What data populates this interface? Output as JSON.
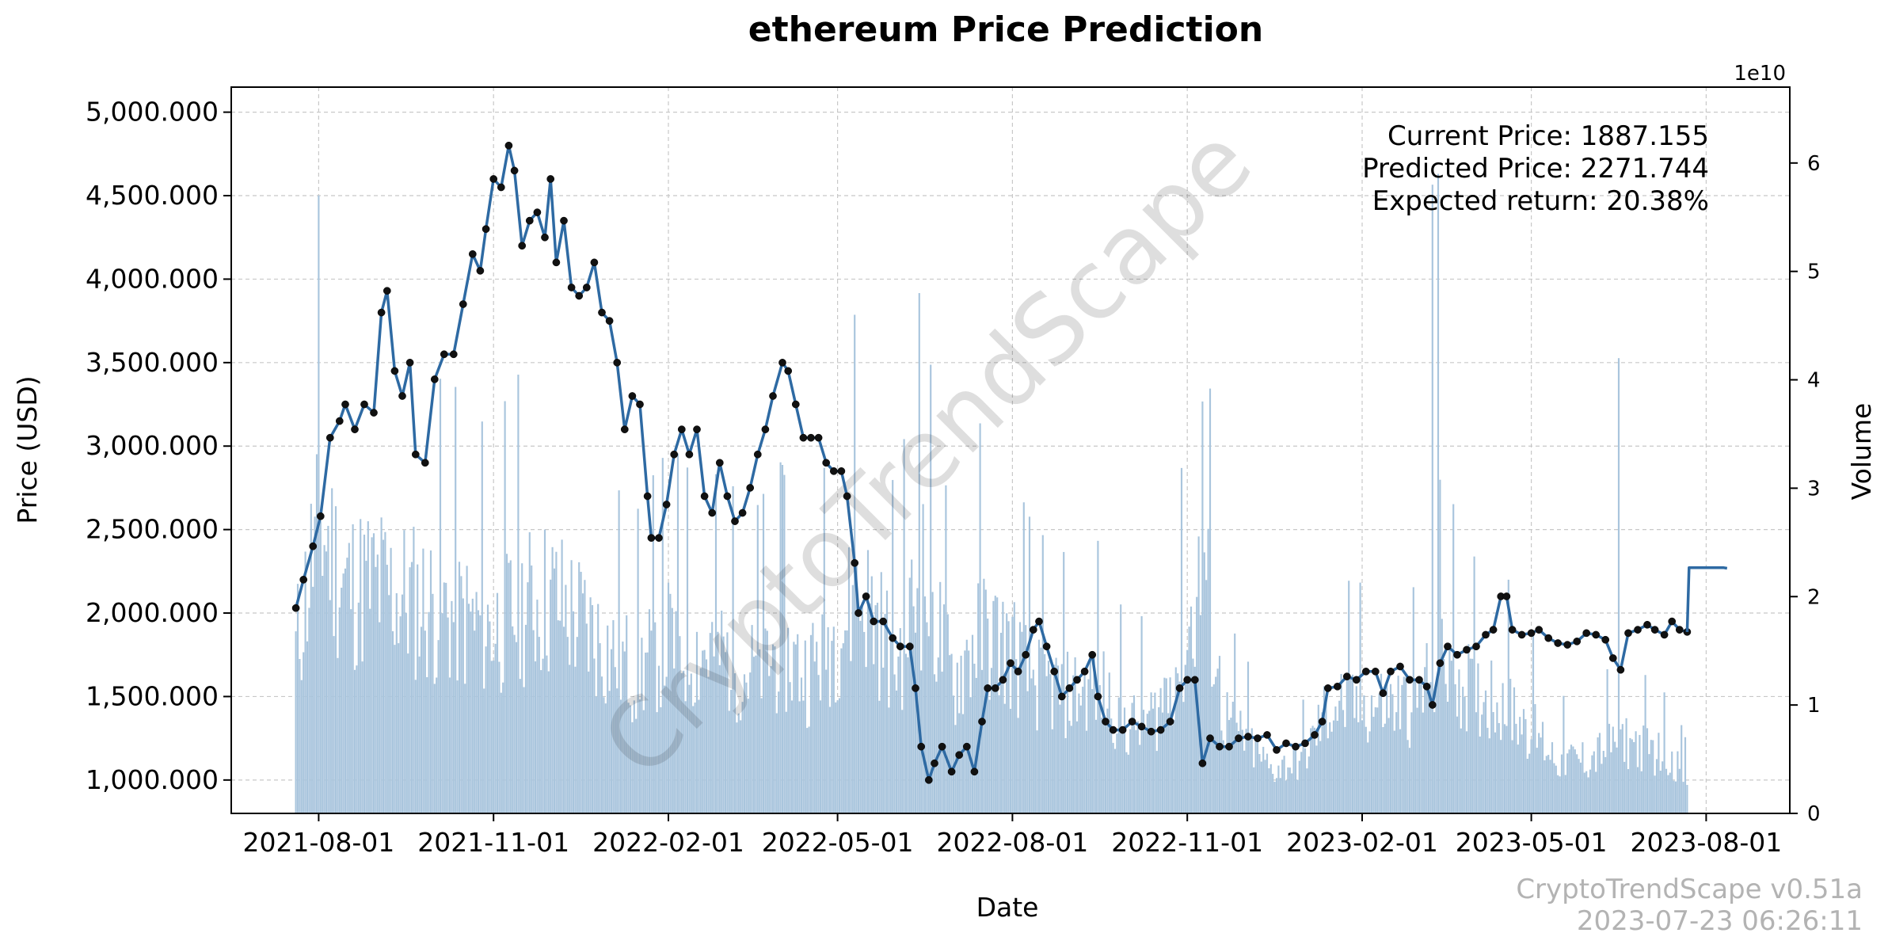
{
  "chart_data": {
    "type": "line",
    "title": "ethereum Price Prediction",
    "xlabel": "Date",
    "ylabel": "Price (USD)",
    "y2label": "Volume",
    "y2_scale_note": "1e10",
    "ylim": [
      800,
      5150
    ],
    "y2lim": [
      0,
      6.7
    ],
    "grid": true,
    "x_ticks": [
      "2021-08-01",
      "2021-11-01",
      "2022-02-01",
      "2022-05-01",
      "2022-08-01",
      "2022-11-01",
      "2023-02-01",
      "2023-05-01",
      "2023-08-01"
    ],
    "y_ticks": [
      "1,000.000",
      "1,500.000",
      "2,000.000",
      "2,500.000",
      "3,000.000",
      "3,500.000",
      "4,000.000",
      "4,500.000",
      "5,000.000"
    ],
    "y_tick_values": [
      1000,
      1500,
      2000,
      2500,
      3000,
      3500,
      4000,
      4500,
      5000
    ],
    "y2_ticks": [
      "0",
      "1",
      "2",
      "3",
      "4",
      "5",
      "6"
    ],
    "y2_tick_values": [
      0,
      1,
      2,
      3,
      4,
      5,
      6
    ],
    "series": [
      {
        "name": "Price",
        "style": "line-with-markers",
        "color": "#2e6aa3",
        "points": [
          [
            "2021-07-20",
            2030
          ],
          [
            "2021-07-24",
            2200
          ],
          [
            "2021-07-29",
            2400
          ],
          [
            "2021-08-02",
            2580
          ],
          [
            "2021-08-07",
            3050
          ],
          [
            "2021-08-12",
            3150
          ],
          [
            "2021-08-15",
            3250
          ],
          [
            "2021-08-20",
            3100
          ],
          [
            "2021-08-25",
            3250
          ],
          [
            "2021-08-30",
            3200
          ],
          [
            "2021-09-03",
            3800
          ],
          [
            "2021-09-06",
            3930
          ],
          [
            "2021-09-10",
            3450
          ],
          [
            "2021-09-14",
            3300
          ],
          [
            "2021-09-18",
            3500
          ],
          [
            "2021-09-21",
            2950
          ],
          [
            "2021-09-26",
            2900
          ],
          [
            "2021-10-01",
            3400
          ],
          [
            "2021-10-06",
            3550
          ],
          [
            "2021-10-11",
            3550
          ],
          [
            "2021-10-16",
            3850
          ],
          [
            "2021-10-21",
            4150
          ],
          [
            "2021-10-25",
            4050
          ],
          [
            "2021-10-28",
            4300
          ],
          [
            "2021-11-01",
            4600
          ],
          [
            "2021-11-05",
            4550
          ],
          [
            "2021-11-09",
            4800
          ],
          [
            "2021-11-12",
            4650
          ],
          [
            "2021-11-16",
            4200
          ],
          [
            "2021-11-20",
            4350
          ],
          [
            "2021-11-24",
            4400
          ],
          [
            "2021-11-28",
            4250
          ],
          [
            "2021-12-01",
            4600
          ],
          [
            "2021-12-04",
            4100
          ],
          [
            "2021-12-08",
            4350
          ],
          [
            "2021-12-12",
            3950
          ],
          [
            "2021-12-16",
            3900
          ],
          [
            "2021-12-20",
            3950
          ],
          [
            "2021-12-24",
            4100
          ],
          [
            "2021-12-28",
            3800
          ],
          [
            "2022-01-01",
            3750
          ],
          [
            "2022-01-05",
            3500
          ],
          [
            "2022-01-09",
            3100
          ],
          [
            "2022-01-13",
            3300
          ],
          [
            "2022-01-17",
            3250
          ],
          [
            "2022-01-21",
            2700
          ],
          [
            "2022-01-23",
            2450
          ],
          [
            "2022-01-27",
            2450
          ],
          [
            "2022-01-31",
            2650
          ],
          [
            "2022-02-04",
            2950
          ],
          [
            "2022-02-08",
            3100
          ],
          [
            "2022-02-12",
            2950
          ],
          [
            "2022-02-16",
            3100
          ],
          [
            "2022-02-20",
            2700
          ],
          [
            "2022-02-24",
            2600
          ],
          [
            "2022-02-28",
            2900
          ],
          [
            "2022-03-04",
            2700
          ],
          [
            "2022-03-08",
            2550
          ],
          [
            "2022-03-12",
            2600
          ],
          [
            "2022-03-16",
            2750
          ],
          [
            "2022-03-20",
            2950
          ],
          [
            "2022-03-24",
            3100
          ],
          [
            "2022-03-28",
            3300
          ],
          [
            "2022-04-02",
            3500
          ],
          [
            "2022-04-05",
            3450
          ],
          [
            "2022-04-09",
            3250
          ],
          [
            "2022-04-13",
            3050
          ],
          [
            "2022-04-17",
            3050
          ],
          [
            "2022-04-21",
            3050
          ],
          [
            "2022-04-25",
            2900
          ],
          [
            "2022-04-29",
            2850
          ],
          [
            "2022-05-03",
            2850
          ],
          [
            "2022-05-06",
            2700
          ],
          [
            "2022-05-10",
            2300
          ],
          [
            "2022-05-12",
            2000
          ],
          [
            "2022-05-16",
            2100
          ],
          [
            "2022-05-20",
            1950
          ],
          [
            "2022-05-25",
            1950
          ],
          [
            "2022-05-30",
            1850
          ],
          [
            "2022-06-03",
            1800
          ],
          [
            "2022-06-08",
            1800
          ],
          [
            "2022-06-11",
            1550
          ],
          [
            "2022-06-14",
            1200
          ],
          [
            "2022-06-18",
            1000
          ],
          [
            "2022-06-21",
            1100
          ],
          [
            "2022-06-25",
            1200
          ],
          [
            "2022-06-30",
            1050
          ],
          [
            "2022-07-04",
            1150
          ],
          [
            "2022-07-08",
            1200
          ],
          [
            "2022-07-12",
            1050
          ],
          [
            "2022-07-16",
            1350
          ],
          [
            "2022-07-19",
            1550
          ],
          [
            "2022-07-23",
            1550
          ],
          [
            "2022-07-27",
            1600
          ],
          [
            "2022-07-31",
            1700
          ],
          [
            "2022-08-04",
            1650
          ],
          [
            "2022-08-08",
            1750
          ],
          [
            "2022-08-12",
            1900
          ],
          [
            "2022-08-15",
            1950
          ],
          [
            "2022-08-19",
            1800
          ],
          [
            "2022-08-23",
            1650
          ],
          [
            "2022-08-27",
            1500
          ],
          [
            "2022-08-31",
            1550
          ],
          [
            "2022-09-04",
            1600
          ],
          [
            "2022-09-08",
            1650
          ],
          [
            "2022-09-12",
            1750
          ],
          [
            "2022-09-15",
            1500
          ],
          [
            "2022-09-19",
            1350
          ],
          [
            "2022-09-23",
            1300
          ],
          [
            "2022-09-28",
            1300
          ],
          [
            "2022-10-03",
            1350
          ],
          [
            "2022-10-08",
            1320
          ],
          [
            "2022-10-13",
            1290
          ],
          [
            "2022-10-18",
            1300
          ],
          [
            "2022-10-23",
            1350
          ],
          [
            "2022-10-28",
            1550
          ],
          [
            "2022-11-01",
            1600
          ],
          [
            "2022-11-05",
            1600
          ],
          [
            "2022-11-09",
            1100
          ],
          [
            "2022-11-13",
            1250
          ],
          [
            "2022-11-18",
            1200
          ],
          [
            "2022-11-23",
            1200
          ],
          [
            "2022-11-28",
            1250
          ],
          [
            "2022-12-03",
            1260
          ],
          [
            "2022-12-08",
            1250
          ],
          [
            "2022-12-13",
            1270
          ],
          [
            "2022-12-18",
            1180
          ],
          [
            "2022-12-23",
            1220
          ],
          [
            "2022-12-28",
            1200
          ],
          [
            "2023-01-02",
            1220
          ],
          [
            "2023-01-07",
            1270
          ],
          [
            "2023-01-11",
            1350
          ],
          [
            "2023-01-14",
            1550
          ],
          [
            "2023-01-19",
            1560
          ],
          [
            "2023-01-24",
            1620
          ],
          [
            "2023-01-29",
            1600
          ],
          [
            "2023-02-03",
            1650
          ],
          [
            "2023-02-08",
            1650
          ],
          [
            "2023-02-12",
            1520
          ],
          [
            "2023-02-16",
            1650
          ],
          [
            "2023-02-21",
            1680
          ],
          [
            "2023-02-26",
            1600
          ],
          [
            "2023-03-03",
            1600
          ],
          [
            "2023-03-07",
            1560
          ],
          [
            "2023-03-10",
            1450
          ],
          [
            "2023-03-14",
            1700
          ],
          [
            "2023-03-18",
            1800
          ],
          [
            "2023-03-23",
            1750
          ],
          [
            "2023-03-28",
            1780
          ],
          [
            "2023-04-02",
            1800
          ],
          [
            "2023-04-07",
            1870
          ],
          [
            "2023-04-11",
            1900
          ],
          [
            "2023-04-15",
            2100
          ],
          [
            "2023-04-18",
            2100
          ],
          [
            "2023-04-21",
            1900
          ],
          [
            "2023-04-26",
            1870
          ],
          [
            "2023-05-01",
            1880
          ],
          [
            "2023-05-05",
            1900
          ],
          [
            "2023-05-10",
            1850
          ],
          [
            "2023-05-15",
            1820
          ],
          [
            "2023-05-20",
            1810
          ],
          [
            "2023-05-25",
            1830
          ],
          [
            "2023-05-30",
            1880
          ],
          [
            "2023-06-04",
            1870
          ],
          [
            "2023-06-09",
            1840
          ],
          [
            "2023-06-13",
            1730
          ],
          [
            "2023-06-17",
            1660
          ],
          [
            "2023-06-21",
            1880
          ],
          [
            "2023-06-26",
            1900
          ],
          [
            "2023-07-01",
            1930
          ],
          [
            "2023-07-05",
            1900
          ],
          [
            "2023-07-10",
            1870
          ],
          [
            "2023-07-14",
            1950
          ],
          [
            "2023-07-18",
            1900
          ],
          [
            "2023-07-22",
            1887
          ]
        ]
      },
      {
        "name": "Prediction",
        "style": "line",
        "color": "#2e6aa3",
        "points": [
          [
            "2023-07-22",
            1887
          ],
          [
            "2023-07-23",
            2272
          ],
          [
            "2023-08-10",
            2272
          ],
          [
            "2023-08-12",
            2268
          ]
        ]
      },
      {
        "name": "Volume",
        "type": "bar",
        "axis": "y2",
        "color": "#a9c5dd",
        "unit": "1e10",
        "points": [
          [
            "2021-07-20",
            1.5
          ],
          [
            "2021-08-01",
            2.7
          ],
          [
            "2021-08-15",
            2.1
          ],
          [
            "2021-09-01",
            2.1
          ],
          [
            "2021-09-15",
            2.0
          ],
          [
            "2021-10-01",
            1.9
          ],
          [
            "2021-10-15",
            1.8
          ],
          [
            "2021-11-01",
            1.7
          ],
          [
            "2021-11-15",
            1.9
          ],
          [
            "2021-12-01",
            2.0
          ],
          [
            "2021-12-15",
            1.8
          ],
          [
            "2022-01-01",
            1.5
          ],
          [
            "2022-01-15",
            1.3
          ],
          [
            "2022-02-01",
            1.6
          ],
          [
            "2022-02-15",
            1.5
          ],
          [
            "2022-03-01",
            1.5
          ],
          [
            "2022-03-15",
            1.3
          ],
          [
            "2022-04-01",
            1.5
          ],
          [
            "2022-04-15",
            1.3
          ],
          [
            "2022-05-01",
            1.7
          ],
          [
            "2022-05-15",
            2.0
          ],
          [
            "2022-06-01",
            1.4
          ],
          [
            "2022-06-15",
            2.2
          ],
          [
            "2022-07-01",
            1.2
          ],
          [
            "2022-07-15",
            1.7
          ],
          [
            "2022-08-01",
            1.5
          ],
          [
            "2022-08-15",
            1.2
          ],
          [
            "2022-09-01",
            1.1
          ],
          [
            "2022-09-15",
            1.2
          ],
          [
            "2022-10-01",
            0.8
          ],
          [
            "2022-10-15",
            0.9
          ],
          [
            "2022-11-01",
            1.6
          ],
          [
            "2022-11-10",
            2.3
          ],
          [
            "2022-11-20",
            0.9
          ],
          [
            "2022-12-01",
            0.7
          ],
          [
            "2022-12-15",
            0.4
          ],
          [
            "2023-01-01",
            0.5
          ],
          [
            "2023-01-15",
            1.0
          ],
          [
            "2023-02-01",
            1.0
          ],
          [
            "2023-02-15",
            1.0
          ],
          [
            "2023-03-01",
            1.0
          ],
          [
            "2023-03-15",
            1.5
          ],
          [
            "2023-04-01",
            1.1
          ],
          [
            "2023-04-15",
            1.1
          ],
          [
            "2023-05-01",
            0.8
          ],
          [
            "2023-05-15",
            0.5
          ],
          [
            "2023-06-01",
            0.5
          ],
          [
            "2023-06-15",
            0.7
          ],
          [
            "2023-07-01",
            0.6
          ],
          [
            "2023-07-15",
            0.5
          ],
          [
            "2023-07-22",
            0.3
          ]
        ],
        "spikes": [
          [
            "2022-05-10",
            4.6
          ],
          [
            "2022-06-13",
            4.8
          ],
          [
            "2022-11-09",
            3.8
          ],
          [
            "2023-03-10",
            5.8
          ],
          [
            "2023-03-13",
            5.9
          ],
          [
            "2023-06-16",
            4.2
          ]
        ]
      }
    ],
    "annotations": {
      "current_price": "Current Price: 1887.155",
      "predicted_price": "Predicted Price: 2271.744",
      "expected_return": "Expected return: 20.38%"
    },
    "watermark": "CryptoTrendScape",
    "footer": {
      "version": "CryptoTrendScape v0.51a",
      "timestamp": "2023-07-23 06:26:11"
    }
  }
}
